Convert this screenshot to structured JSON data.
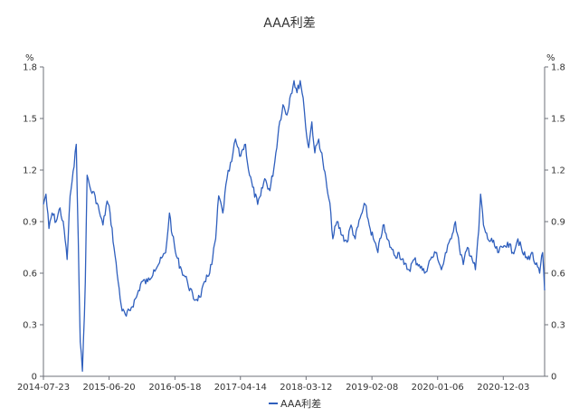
{
  "chart_data": {
    "type": "line",
    "title": "AAA利差",
    "y_unit_left": "%",
    "y_unit_right": "%",
    "ylim": [
      0,
      1.8
    ],
    "y_ticks": [
      "0",
      "0.3",
      "0.6",
      "0.9",
      "1.2",
      "1.5",
      "1.8"
    ],
    "x_ticks": [
      "2014-07-23",
      "2015-06-20",
      "2016-05-18",
      "2017-04-14",
      "2018-03-12",
      "2019-02-08",
      "2020-01-06",
      "2020-12-03"
    ],
    "x_range": [
      "2014-07-23",
      "2021-06-30"
    ],
    "grid": false,
    "legend_position": "bottom",
    "line_color": "#2f5fbd",
    "series": [
      {
        "name": "AAA利差",
        "points": [
          [
            "2014-07-23",
            1.0
          ],
          [
            "2014-08-05",
            1.06
          ],
          [
            "2014-08-20",
            0.86
          ],
          [
            "2014-09-05",
            0.95
          ],
          [
            "2014-09-25",
            0.9
          ],
          [
            "2014-10-15",
            0.98
          ],
          [
            "2014-11-05",
            0.85
          ],
          [
            "2014-11-20",
            0.68
          ],
          [
            "2014-12-05",
            1.05
          ],
          [
            "2014-12-25",
            1.22
          ],
          [
            "2015-01-05",
            1.35
          ],
          [
            "2015-01-15",
            0.8
          ],
          [
            "2015-01-25",
            0.2
          ],
          [
            "2015-02-05",
            0.03
          ],
          [
            "2015-02-20",
            0.55
          ],
          [
            "2015-03-01",
            1.17
          ],
          [
            "2015-03-20",
            1.08
          ],
          [
            "2015-04-10",
            1.05
          ],
          [
            "2015-05-01",
            0.96
          ],
          [
            "2015-05-20",
            0.88
          ],
          [
            "2015-06-10",
            1.02
          ],
          [
            "2015-06-25",
            0.95
          ],
          [
            "2015-07-15",
            0.75
          ],
          [
            "2015-08-05",
            0.55
          ],
          [
            "2015-08-25",
            0.38
          ],
          [
            "2015-09-15",
            0.35
          ],
          [
            "2015-10-10",
            0.4
          ],
          [
            "2015-11-05",
            0.46
          ],
          [
            "2015-12-01",
            0.55
          ],
          [
            "2016-01-01",
            0.55
          ],
          [
            "2016-02-01",
            0.62
          ],
          [
            "2016-03-01",
            0.66
          ],
          [
            "2016-04-01",
            0.72
          ],
          [
            "2016-04-20",
            0.95
          ],
          [
            "2016-05-05",
            0.82
          ],
          [
            "2016-05-25",
            0.7
          ],
          [
            "2016-06-20",
            0.62
          ],
          [
            "2016-07-20",
            0.55
          ],
          [
            "2016-08-20",
            0.45
          ],
          [
            "2016-09-20",
            0.46
          ],
          [
            "2016-10-20",
            0.55
          ],
          [
            "2016-11-20",
            0.65
          ],
          [
            "2016-12-10",
            0.8
          ],
          [
            "2016-12-25",
            1.05
          ],
          [
            "2017-01-15",
            0.95
          ],
          [
            "2017-02-05",
            1.15
          ],
          [
            "2017-03-01",
            1.25
          ],
          [
            "2017-03-20",
            1.38
          ],
          [
            "2017-04-10",
            1.28
          ],
          [
            "2017-04-25",
            1.32
          ],
          [
            "2017-05-10",
            1.35
          ],
          [
            "2017-05-25",
            1.2
          ],
          [
            "2017-06-15",
            1.1
          ],
          [
            "2017-07-10",
            1.0
          ],
          [
            "2017-07-25",
            1.05
          ],
          [
            "2017-08-15",
            1.15
          ],
          [
            "2017-09-10",
            1.08
          ],
          [
            "2017-10-05",
            1.25
          ],
          [
            "2017-10-25",
            1.45
          ],
          [
            "2017-11-15",
            1.58
          ],
          [
            "2017-12-05",
            1.52
          ],
          [
            "2017-12-20",
            1.62
          ],
          [
            "2018-01-10",
            1.72
          ],
          [
            "2018-01-25",
            1.65
          ],
          [
            "2018-02-10",
            1.72
          ],
          [
            "2018-02-25",
            1.62
          ],
          [
            "2018-03-10",
            1.45
          ],
          [
            "2018-03-25",
            1.33
          ],
          [
            "2018-04-10",
            1.48
          ],
          [
            "2018-04-25",
            1.3
          ],
          [
            "2018-05-15",
            1.38
          ],
          [
            "2018-06-05",
            1.25
          ],
          [
            "2018-06-25",
            1.1
          ],
          [
            "2018-07-15",
            0.95
          ],
          [
            "2018-07-25",
            0.8
          ],
          [
            "2018-08-15",
            0.9
          ],
          [
            "2018-09-10",
            0.82
          ],
          [
            "2018-10-05",
            0.78
          ],
          [
            "2018-10-25",
            0.88
          ],
          [
            "2018-11-15",
            0.8
          ],
          [
            "2018-12-10",
            0.92
          ],
          [
            "2019-01-05",
            1.0
          ],
          [
            "2019-01-25",
            0.88
          ],
          [
            "2019-02-15",
            0.8
          ],
          [
            "2019-03-10",
            0.72
          ],
          [
            "2019-04-05",
            0.88
          ],
          [
            "2019-04-25",
            0.8
          ],
          [
            "2019-05-15",
            0.75
          ],
          [
            "2019-06-05",
            0.7
          ],
          [
            "2019-06-25",
            0.72
          ],
          [
            "2019-07-20",
            0.65
          ],
          [
            "2019-08-15",
            0.62
          ],
          [
            "2019-09-10",
            0.68
          ],
          [
            "2019-10-05",
            0.65
          ],
          [
            "2019-11-01",
            0.6
          ],
          [
            "2019-12-01",
            0.68
          ],
          [
            "2020-01-01",
            0.72
          ],
          [
            "2020-01-25",
            0.62
          ],
          [
            "2020-02-20",
            0.72
          ],
          [
            "2020-03-10",
            0.8
          ],
          [
            "2020-04-05",
            0.9
          ],
          [
            "2020-04-25",
            0.75
          ],
          [
            "2020-05-15",
            0.65
          ],
          [
            "2020-06-05",
            0.75
          ],
          [
            "2020-06-25",
            0.7
          ],
          [
            "2020-07-15",
            0.62
          ],
          [
            "2020-08-01",
            0.85
          ],
          [
            "2020-08-10",
            1.06
          ],
          [
            "2020-08-25",
            0.88
          ],
          [
            "2020-09-15",
            0.8
          ],
          [
            "2020-10-10",
            0.78
          ],
          [
            "2020-11-05",
            0.72
          ],
          [
            "2020-12-01",
            0.75
          ],
          [
            "2020-12-25",
            0.78
          ],
          [
            "2021-01-20",
            0.72
          ],
          [
            "2021-02-15",
            0.8
          ],
          [
            "2021-03-10",
            0.72
          ],
          [
            "2021-04-05",
            0.68
          ],
          [
            "2021-04-25",
            0.72
          ],
          [
            "2021-05-15",
            0.65
          ],
          [
            "2021-06-05",
            0.6
          ],
          [
            "2021-06-20",
            0.72
          ],
          [
            "2021-06-30",
            0.5
          ]
        ]
      }
    ]
  }
}
